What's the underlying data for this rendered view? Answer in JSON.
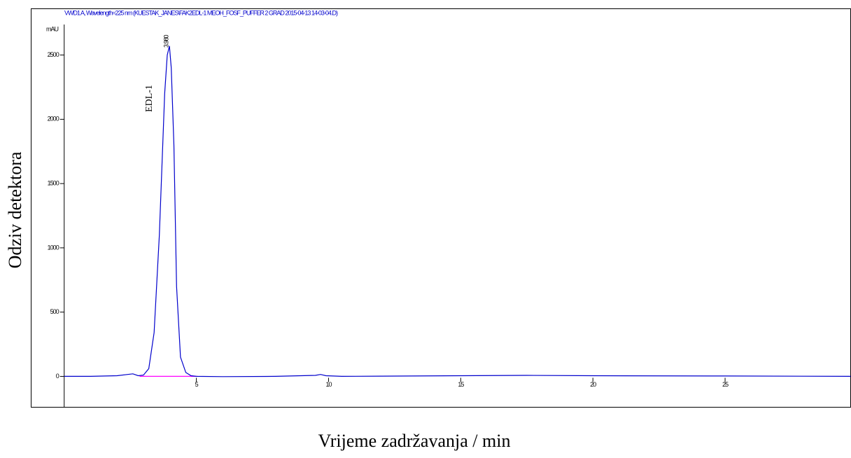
{
  "chart_data": {
    "type": "line",
    "title": "VWD1 A, Wavelength=225 nm (KUESTAK_JANES\\FAK2EDL-1 MEOH_FOSF_PUFFER 2 GRAD 2015-04-13 14-03-04.D)",
    "x_label": "Vrijeme zadržavanja / min",
    "y_label": "Odziv detektora",
    "y_unit": "mAU",
    "peak_label": "3.980",
    "compound_label": "EDL-1",
    "x": [
      0,
      1,
      2,
      2.4,
      2.6,
      2.8,
      3.0,
      3.2,
      3.4,
      3.6,
      3.8,
      3.9,
      3.98,
      4.05,
      4.15,
      4.25,
      4.4,
      4.6,
      4.8,
      5,
      6,
      8,
      9.5,
      9.7,
      9.9,
      10.5,
      12,
      15,
      17.5,
      20,
      25,
      29.75
    ],
    "series": [
      {
        "color": "#0000cc",
        "values": [
          0,
          0,
          5,
          15,
          20,
          5,
          10,
          60,
          340,
          1100,
          2200,
          2500,
          2570,
          2400,
          1800,
          700,
          150,
          30,
          5,
          0,
          -2,
          0,
          8,
          15,
          5,
          0,
          2,
          5,
          8,
          5,
          3,
          0
        ]
      }
    ],
    "baseline": {
      "color": "#ff00ff",
      "x": [
        2.85,
        5.05
      ],
      "values": [
        0,
        0
      ]
    },
    "xlim": [
      -1.25,
      29.75
    ],
    "ylim": [
      -240,
      2860
    ],
    "xticks": [
      5,
      10,
      15,
      20,
      25
    ],
    "yticks": [
      0,
      500,
      1000,
      1500,
      2000,
      2500
    ]
  }
}
